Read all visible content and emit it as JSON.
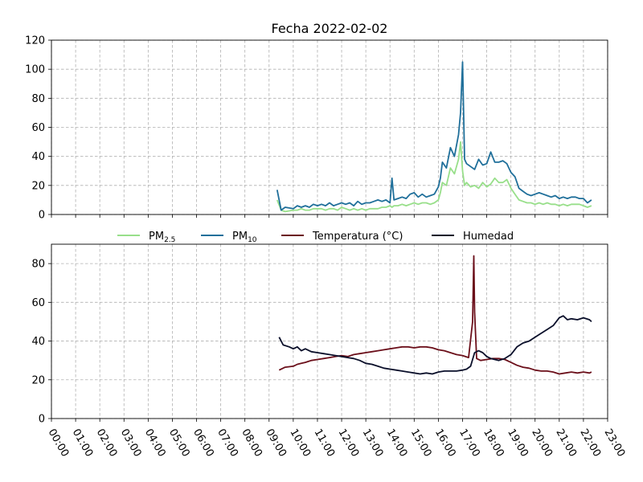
{
  "chart_data": [
    {
      "type": "line",
      "title": "Fecha 2022-02-02",
      "xlabel": "",
      "ylabel": "",
      "ylim": [
        0,
        120
      ],
      "yticks": [
        0,
        20,
        40,
        60,
        80,
        100,
        120
      ],
      "xlim": [
        "00:00",
        "23:00"
      ],
      "grid": true,
      "series": [
        {
          "name": "PM2.5",
          "color": "#98df8a",
          "x": [
            "09:20",
            "09:30",
            "09:40",
            "10:00",
            "10:10",
            "10:20",
            "10:30",
            "10:40",
            "10:50",
            "11:00",
            "11:10",
            "11:20",
            "11:30",
            "11:40",
            "11:50",
            "12:00",
            "12:10",
            "12:20",
            "12:30",
            "12:40",
            "12:50",
            "13:00",
            "13:10",
            "13:20",
            "13:30",
            "13:40",
            "13:50",
            "14:00",
            "14:05",
            "14:10",
            "14:20",
            "14:30",
            "14:40",
            "14:50",
            "15:00",
            "15:10",
            "15:20",
            "15:30",
            "15:40",
            "15:50",
            "16:00",
            "16:05",
            "16:10",
            "16:20",
            "16:30",
            "16:40",
            "16:50",
            "16:55",
            "17:00",
            "17:05",
            "17:10",
            "17:20",
            "17:30",
            "17:40",
            "17:50",
            "18:00",
            "18:10",
            "18:20",
            "18:30",
            "18:40",
            "18:50",
            "19:00",
            "19:10",
            "19:20",
            "19:30",
            "19:40",
            "19:50",
            "20:00",
            "20:10",
            "20:20",
            "20:30",
            "20:40",
            "20:50",
            "21:00",
            "21:10",
            "21:20",
            "21:30",
            "21:40",
            "21:50",
            "22:00",
            "22:10",
            "22:20"
          ],
          "y": [
            10,
            3,
            2,
            3,
            3,
            4,
            3,
            3,
            4,
            4,
            4,
            3,
            4,
            4,
            3,
            5,
            4,
            3,
            4,
            3,
            4,
            3,
            4,
            4,
            4,
            5,
            5,
            6,
            5,
            6,
            6,
            7,
            6,
            7,
            8,
            7,
            8,
            8,
            7,
            8,
            10,
            15,
            22,
            20,
            32,
            28,
            38,
            50,
            30,
            20,
            22,
            19,
            20,
            18,
            22,
            19,
            21,
            25,
            22,
            22,
            24,
            18,
            14,
            10,
            9,
            8,
            8,
            7,
            8,
            7,
            8,
            7,
            7,
            6,
            7,
            6,
            7,
            7,
            7,
            6,
            5,
            6
          ]
        },
        {
          "name": "PM10",
          "color": "#1f6f9a",
          "x": [
            "09:20",
            "09:30",
            "09:40",
            "10:00",
            "10:10",
            "10:20",
            "10:30",
            "10:40",
            "10:50",
            "11:00",
            "11:10",
            "11:20",
            "11:30",
            "11:40",
            "11:50",
            "12:00",
            "12:10",
            "12:20",
            "12:30",
            "12:40",
            "12:50",
            "13:00",
            "13:10",
            "13:20",
            "13:30",
            "13:40",
            "13:50",
            "14:00",
            "14:05",
            "14:10",
            "14:20",
            "14:30",
            "14:40",
            "14:50",
            "15:00",
            "15:10",
            "15:20",
            "15:30",
            "15:40",
            "15:50",
            "16:00",
            "16:05",
            "16:10",
            "16:20",
            "16:30",
            "16:40",
            "16:50",
            "16:55",
            "17:00",
            "17:05",
            "17:10",
            "17:20",
            "17:30",
            "17:40",
            "17:50",
            "18:00",
            "18:10",
            "18:20",
            "18:30",
            "18:40",
            "18:50",
            "19:00",
            "19:10",
            "19:20",
            "19:30",
            "19:40",
            "19:50",
            "20:00",
            "20:10",
            "20:20",
            "20:30",
            "20:40",
            "20:50",
            "21:00",
            "21:10",
            "21:20",
            "21:30",
            "21:40",
            "21:50",
            "22:00",
            "22:10",
            "22:20"
          ],
          "y": [
            17,
            3,
            5,
            4,
            6,
            5,
            6,
            5,
            7,
            6,
            7,
            6,
            8,
            6,
            7,
            8,
            7,
            8,
            6,
            9,
            7,
            8,
            8,
            9,
            10,
            9,
            10,
            8,
            25,
            10,
            11,
            12,
            11,
            14,
            15,
            12,
            14,
            12,
            13,
            14,
            19,
            25,
            36,
            32,
            46,
            40,
            55,
            70,
            105,
            38,
            35,
            33,
            31,
            38,
            34,
            35,
            43,
            36,
            36,
            37,
            35,
            29,
            26,
            18,
            16,
            14,
            13,
            14,
            15,
            14,
            13,
            12,
            13,
            11,
            12,
            11,
            12,
            12,
            11,
            11,
            8,
            10
          ]
        }
      ]
    },
    {
      "type": "line",
      "title": "",
      "xlabel": "",
      "ylabel": "",
      "ylim": [
        0,
        90
      ],
      "yticks": [
        0,
        20,
        40,
        60,
        80
      ],
      "xlim": [
        "00:00",
        "23:00"
      ],
      "grid": true,
      "xticks": [
        "00:00",
        "01:00",
        "02:00",
        "03:00",
        "04:00",
        "05:00",
        "06:00",
        "07:00",
        "08:00",
        "09:00",
        "10:00",
        "11:00",
        "12:00",
        "13:00",
        "14:00",
        "15:00",
        "16:00",
        "17:00",
        "18:00",
        "19:00",
        "20:00",
        "21:00",
        "22:00",
        "23:00"
      ],
      "legend_position": "top-center",
      "series": [
        {
          "name": "Temperatura (°C)",
          "color": "#6b0f1a",
          "x": [
            "09:25",
            "09:40",
            "10:00",
            "10:10",
            "10:20",
            "10:30",
            "10:45",
            "11:00",
            "11:15",
            "11:30",
            "11:45",
            "12:00",
            "12:15",
            "12:30",
            "12:45",
            "13:00",
            "13:15",
            "13:30",
            "13:45",
            "14:00",
            "14:15",
            "14:30",
            "14:45",
            "15:00",
            "15:15",
            "15:30",
            "15:45",
            "16:00",
            "16:15",
            "16:30",
            "16:45",
            "17:00",
            "17:15",
            "17:25",
            "17:28",
            "17:30",
            "17:35",
            "17:45",
            "18:00",
            "18:15",
            "18:30",
            "18:45",
            "19:00",
            "19:15",
            "19:30",
            "19:45",
            "20:00",
            "20:15",
            "20:30",
            "20:45",
            "21:00",
            "21:15",
            "21:30",
            "21:45",
            "22:00",
            "22:15",
            "22:20"
          ],
          "y": [
            25,
            26.5,
            27,
            28,
            28.5,
            29,
            30,
            30.5,
            31,
            31.5,
            32,
            32.5,
            32,
            33,
            33.5,
            34,
            34.5,
            35,
            35.5,
            36,
            36.5,
            37,
            37,
            36.5,
            37,
            37,
            36.5,
            35.5,
            35,
            34,
            33,
            32.5,
            31.5,
            50,
            84,
            55,
            31,
            30,
            30.5,
            31,
            31,
            30.5,
            29,
            27.5,
            26.5,
            26,
            25,
            24.5,
            24.5,
            24,
            23,
            23.5,
            24,
            23.5,
            24,
            23.5,
            24
          ]
        },
        {
          "name": "Humedad",
          "color": "#0a0f2a",
          "x": [
            "09:25",
            "09:35",
            "09:50",
            "10:00",
            "10:10",
            "10:20",
            "10:30",
            "10:45",
            "11:00",
            "11:15",
            "11:30",
            "11:45",
            "12:00",
            "12:15",
            "12:30",
            "12:45",
            "13:00",
            "13:15",
            "13:30",
            "13:45",
            "14:00",
            "14:15",
            "14:30",
            "14:45",
            "15:00",
            "15:15",
            "15:30",
            "15:45",
            "16:00",
            "16:15",
            "16:30",
            "16:45",
            "17:00",
            "17:10",
            "17:20",
            "17:30",
            "17:40",
            "17:50",
            "18:00",
            "18:10",
            "18:20",
            "18:30",
            "18:45",
            "19:00",
            "19:15",
            "19:30",
            "19:45",
            "20:00",
            "20:15",
            "20:30",
            "20:45",
            "21:00",
            "21:10",
            "21:20",
            "21:30",
            "21:45",
            "22:00",
            "22:15",
            "22:20"
          ],
          "y": [
            42,
            38,
            37,
            36,
            37,
            35,
            36,
            34.5,
            34,
            33.5,
            33,
            32.5,
            32,
            31.5,
            31,
            30,
            28.5,
            28,
            27,
            26,
            25.5,
            25,
            24.5,
            24,
            23.5,
            23,
            23.5,
            23,
            24,
            24.5,
            24.5,
            24.5,
            25,
            25.5,
            27,
            34,
            35,
            34,
            32,
            31,
            30.5,
            30,
            31,
            33,
            37,
            39,
            40,
            42,
            44,
            46,
            48,
            52,
            53,
            51,
            51.5,
            51,
            52,
            51,
            50
          ]
        }
      ]
    }
  ]
}
